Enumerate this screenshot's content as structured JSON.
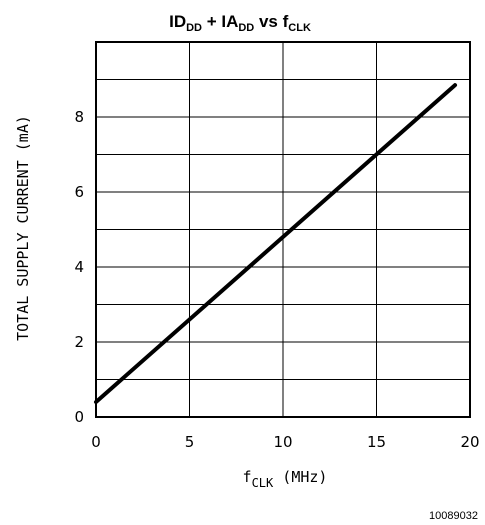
{
  "chart_data": {
    "type": "line",
    "title": {
      "part1_main": "ID",
      "part1_sub": "DD",
      "plus": " + ",
      "part2_main": "IA",
      "part2_sub": "DD",
      "vs": " vs ",
      "part3_main": "f",
      "part3_sub": "CLK"
    },
    "xlabel": {
      "main": "f",
      "sub": "CLK",
      "rest": " (MHz)"
    },
    "ylabel": "TOTAL SUPPLY CURRENT (mA)",
    "xlim": [
      0,
      20
    ],
    "ylim": [
      0,
      10
    ],
    "x_ticks": [
      0,
      5,
      10,
      15,
      20
    ],
    "y_ticks": [
      0,
      2,
      4,
      6,
      8
    ],
    "x_grid": [
      0,
      5,
      10,
      15,
      20
    ],
    "y_grid": [
      1,
      2,
      3,
      4,
      5,
      6,
      7,
      8,
      9
    ],
    "grid": true,
    "series": [
      {
        "x": [
          0,
          19.2
        ],
        "y": [
          0.4,
          8.85
        ]
      }
    ],
    "figure_id": "10089032"
  }
}
